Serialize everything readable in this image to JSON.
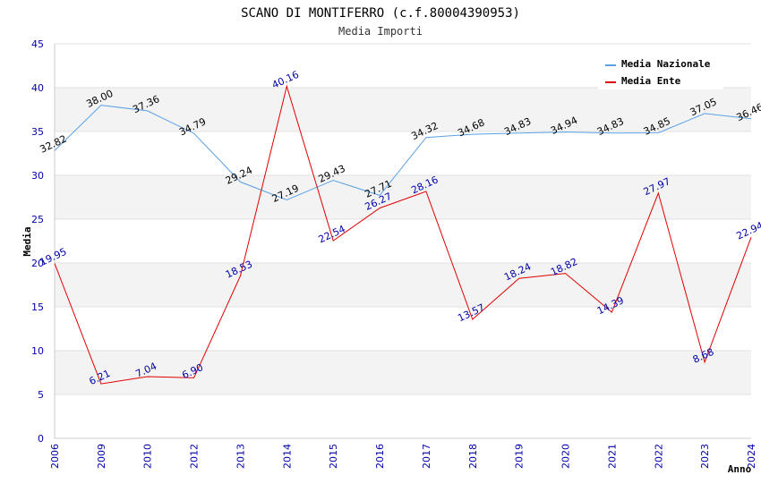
{
  "chart_data": {
    "type": "line",
    "title": "SCANO DI MONTIFERRO (c.f.80004390953)",
    "subtitle": "Media Importi",
    "xlabel": "Anno",
    "ylabel": "Media",
    "ylim": [
      0,
      45
    ],
    "yticks": [
      "0",
      "5",
      "10",
      "15",
      "20",
      "25",
      "30",
      "35",
      "40",
      "45"
    ],
    "categories": [
      "2006",
      "2009",
      "2010",
      "2012",
      "2013",
      "2014",
      "2015",
      "2016",
      "2017",
      "2018",
      "2019",
      "2020",
      "2021",
      "2022",
      "2023",
      "2024"
    ],
    "legend_position": "top-right",
    "series": [
      {
        "name": "Media Nazionale",
        "color": "#5aa0e6",
        "values": [
          32.82,
          38.0,
          37.36,
          34.79,
          29.24,
          27.19,
          29.43,
          27.71,
          34.32,
          34.68,
          34.83,
          34.94,
          34.83,
          34.85,
          37.05,
          36.46
        ],
        "labels": [
          "32.82",
          "38.00",
          "37.36",
          "34.79",
          "29.24",
          "27.19",
          "29.43",
          "27.71",
          "34.32",
          "34.68",
          "34.83",
          "34.94",
          "34.83",
          "34.85",
          "37.05",
          "36.46"
        ]
      },
      {
        "name": "Media Ente",
        "color": "#e00000",
        "values": [
          19.95,
          6.21,
          7.04,
          6.9,
          18.53,
          40.16,
          22.54,
          26.27,
          28.16,
          13.57,
          18.24,
          18.82,
          14.39,
          27.97,
          8.68,
          22.94
        ],
        "labels": [
          "19.95",
          "6.21",
          "7.04",
          "6.90",
          "18.53",
          "40.16",
          "22.54",
          "26.27",
          "28.16",
          "13.57",
          "18.24",
          "18.82",
          "14.39",
          "27.97",
          "8.68",
          "22.94"
        ]
      }
    ]
  }
}
